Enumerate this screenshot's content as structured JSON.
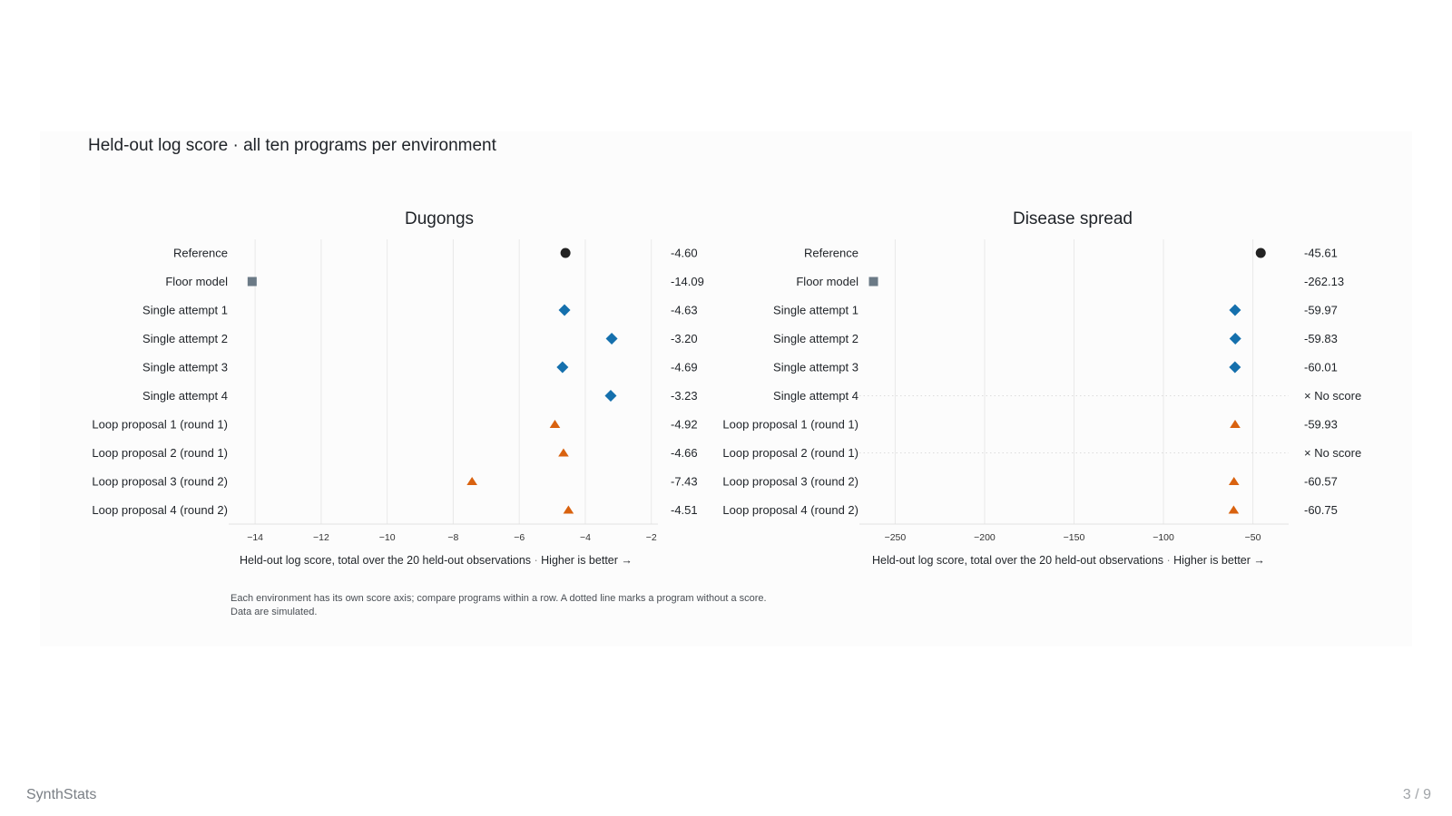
{
  "title": "Held-out log score · all ten programs per environment",
  "footnote": {
    "line1": "Each environment has its own score axis; compare programs within a row. A dotted line marks a program without a score.",
    "line2": "Data are simulated."
  },
  "brand": "SynthStats",
  "page_number": "3 / 9",
  "colors": {
    "reference": "#222222",
    "floor": "#6b7a86",
    "single": "#1570ad",
    "loop": "#d9620f"
  },
  "chart_data": [
    {
      "type": "scatter",
      "title": "Dugongs",
      "xlabel": "Held-out log score, total over the 20 held-out observations",
      "xlabel_note": "Higher is better →",
      "xlim": [
        -14.8,
        -1.8
      ],
      "xticks": [
        -14,
        -12,
        -10,
        -8,
        -6,
        -4,
        -2
      ],
      "categories": [
        "Reference",
        "Floor model",
        "Single attempt 1",
        "Single attempt 2",
        "Single attempt 3",
        "Single attempt 4",
        "Loop proposal 1 (round 1)",
        "Loop proposal 2 (round 1)",
        "Loop proposal 3 (round 2)",
        "Loop proposal 4 (round 2)"
      ],
      "groups": [
        "reference",
        "floor",
        "single",
        "single",
        "single",
        "single",
        "loop",
        "loop",
        "loop",
        "loop"
      ],
      "values": [
        -4.6,
        -14.09,
        -4.63,
        -3.2,
        -4.69,
        -3.23,
        -4.92,
        -4.66,
        -7.43,
        -4.51
      ],
      "value_labels": [
        "-4.60",
        "-14.09",
        "-4.63",
        "-3.20",
        "-4.69",
        "-3.23",
        "-4.92",
        "-4.66",
        "-7.43",
        "-4.51"
      ],
      "grid": true
    },
    {
      "type": "scatter",
      "title": "Disease spread",
      "xlabel": "Held-out log score, total over the 20 held-out observations",
      "xlabel_note": "Higher is better →",
      "xlim": [
        -270,
        -30
      ],
      "xticks": [
        -250,
        -200,
        -150,
        -100,
        -50
      ],
      "xtick_labels": [
        "−250",
        "−200",
        "−150",
        "−100",
        "−50"
      ],
      "categories": [
        "Reference",
        "Floor model",
        "Single attempt 1",
        "Single attempt 2",
        "Single attempt 3",
        "Single attempt 4",
        "Loop proposal 1 (round 1)",
        "Loop proposal 2 (round 1)",
        "Loop proposal 3 (round 2)",
        "Loop proposal 4 (round 2)"
      ],
      "groups": [
        "reference",
        "floor",
        "single",
        "single",
        "single",
        "single",
        "loop",
        "loop",
        "loop",
        "loop"
      ],
      "values": [
        -45.61,
        -262.13,
        -59.97,
        -59.83,
        -60.01,
        null,
        -59.93,
        null,
        -60.57,
        -60.75
      ],
      "value_labels": [
        "-45.61",
        "-262.13",
        "-59.97",
        "-59.83",
        "-60.01",
        "× No score",
        "-59.93",
        "× No score",
        "-60.57",
        "-60.75"
      ],
      "grid": true
    }
  ]
}
